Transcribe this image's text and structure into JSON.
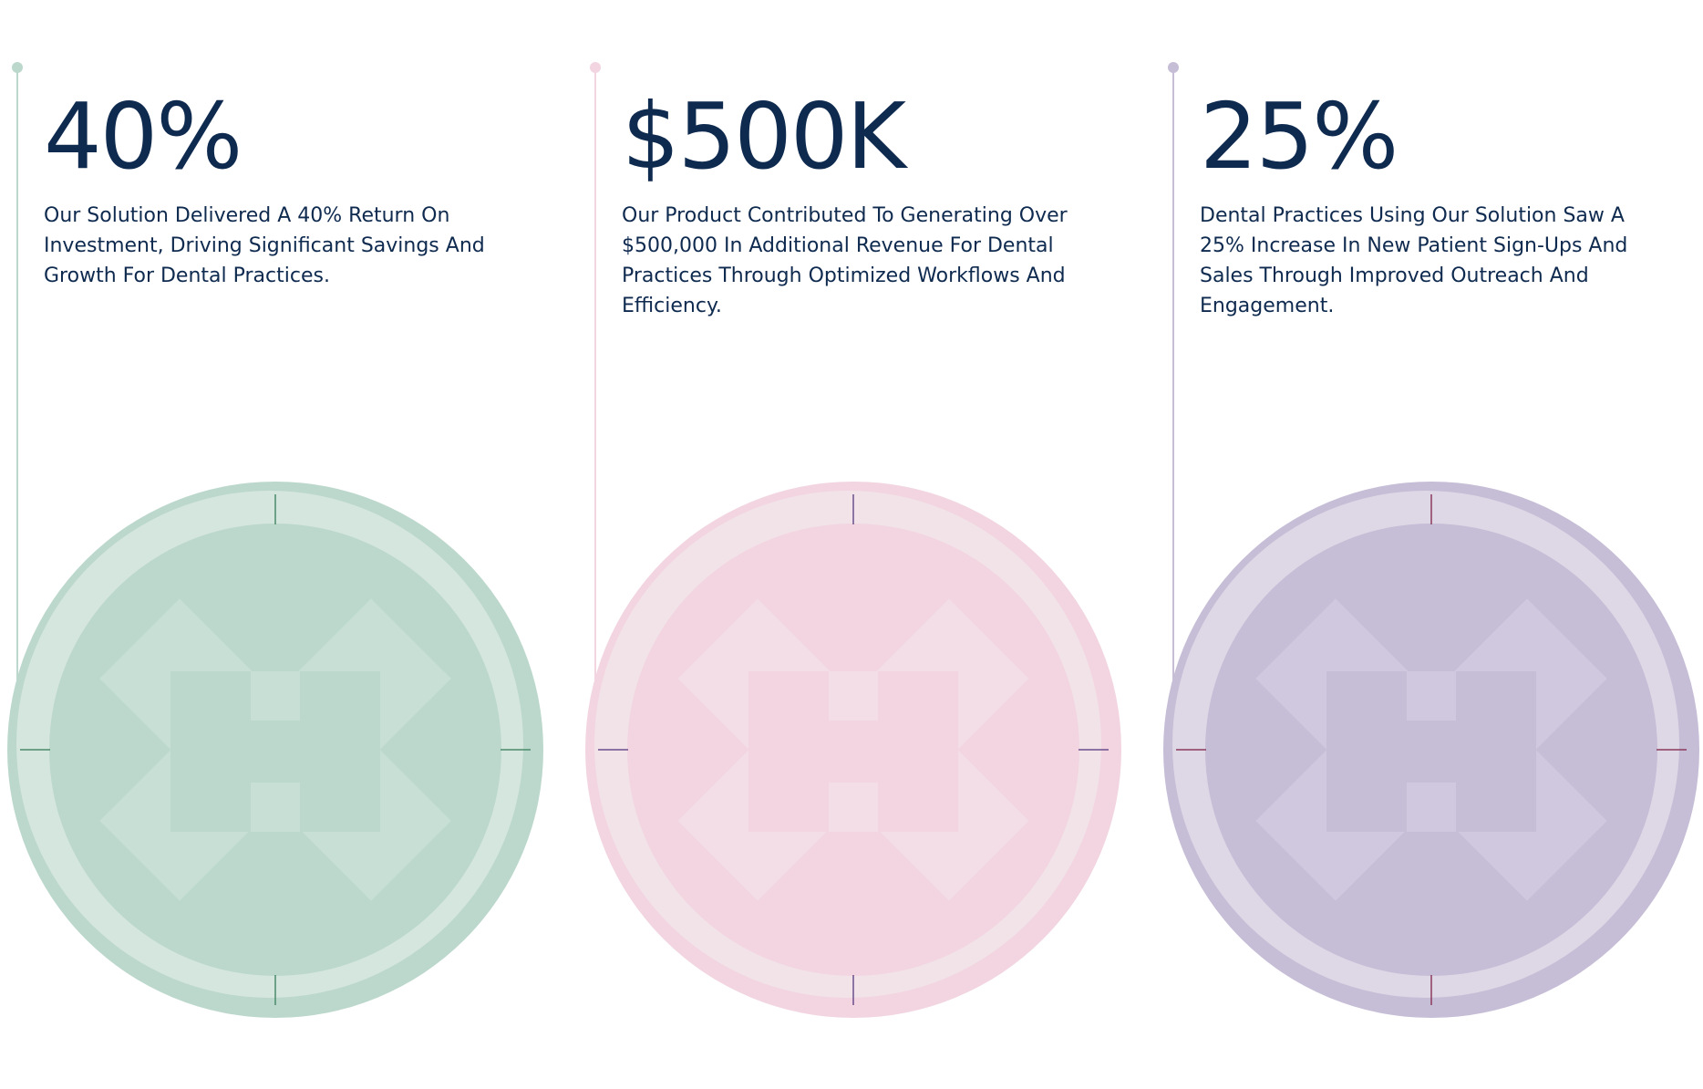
{
  "cards": [
    {
      "stat": "40%",
      "description": "Our Solution Delivered A 40% Return On Investment, Driving Significant Savings And Growth For Dental Practices."
    },
    {
      "stat": "$500K",
      "description": "Our Product Contributed To Generating Over $500,000 In Additional Revenue For Dental Practices Through Optimized Workflows And Efficiency."
    },
    {
      "stat": "25%",
      "description": "Dental Practices Using Our Solution Saw A 25% Increase In New Patient Sign-Ups And Sales Through Improved Outreach And Engagement."
    }
  ]
}
